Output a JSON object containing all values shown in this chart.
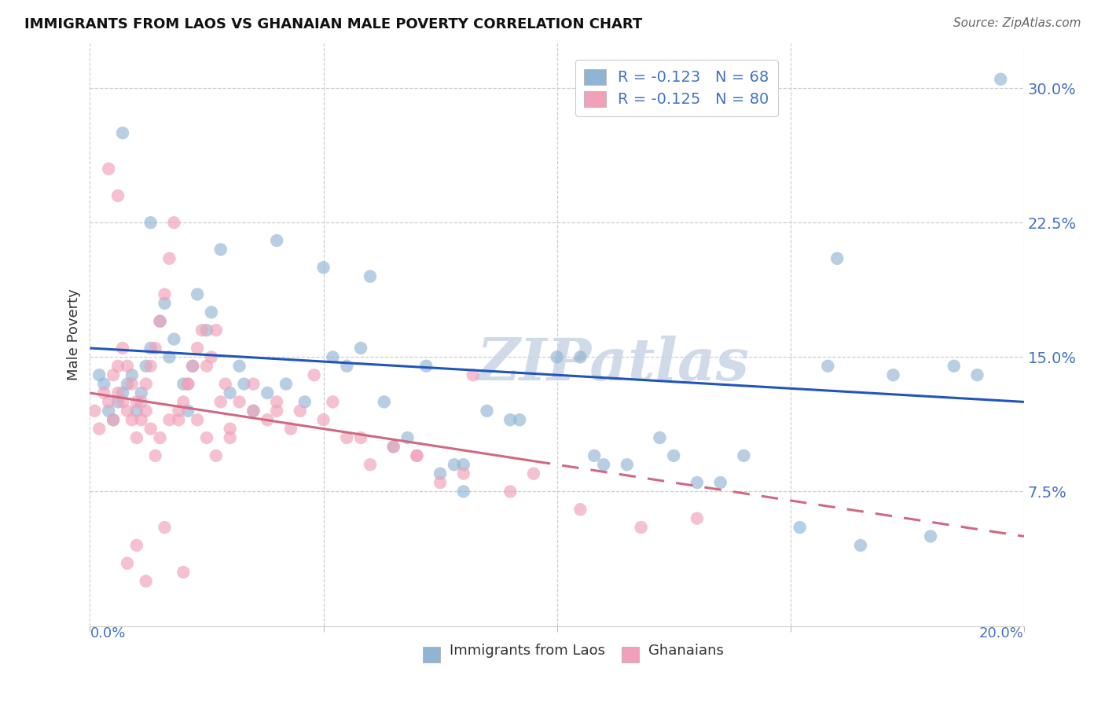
{
  "title": "IMMIGRANTS FROM LAOS VS GHANAIAN MALE POVERTY CORRELATION CHART",
  "source": "Source: ZipAtlas.com",
  "ylabel": "Male Poverty",
  "xlim": [
    0.0,
    20.0
  ],
  "ylim": [
    0.0,
    32.5
  ],
  "yticks": [
    7.5,
    15.0,
    22.5,
    30.0
  ],
  "ytick_labels": [
    "7.5%",
    "15.0%",
    "22.5%",
    "30.0%"
  ],
  "xticks": [
    0.0,
    5.0,
    10.0,
    15.0,
    20.0
  ],
  "blue_color": "#92b4d4",
  "pink_color": "#f0a0b8",
  "trendline_blue_color": "#2255bb",
  "trendline_pink_color": "#d06882",
  "blue_R": -0.123,
  "blue_N": 68,
  "pink_R": -0.125,
  "pink_N": 80,
  "pink_solid_end_x": 9.5,
  "blue_trendline_y0": 15.5,
  "blue_trendline_y1": 12.5,
  "pink_trendline_y0": 13.0,
  "pink_trendline_y1": 5.0,
  "blue_scatter_x": [
    0.2,
    0.3,
    0.4,
    0.5,
    0.6,
    0.7,
    0.8,
    0.9,
    1.0,
    1.1,
    1.2,
    1.3,
    1.5,
    1.6,
    1.7,
    1.8,
    2.0,
    2.1,
    2.2,
    2.5,
    2.6,
    2.8,
    3.0,
    3.2,
    3.5,
    3.8,
    4.2,
    4.6,
    5.2,
    5.8,
    6.3,
    6.8,
    7.2,
    7.8,
    8.5,
    9.2,
    10.0,
    10.8,
    11.5,
    12.2,
    13.0,
    14.0,
    15.2,
    16.5,
    18.0,
    19.5,
    5.5,
    6.5,
    7.5,
    8.0,
    9.0,
    11.0,
    13.5,
    15.8,
    17.2,
    5.0,
    3.3,
    2.3,
    1.3,
    0.7,
    4.0,
    6.0,
    8.0,
    10.5,
    12.5,
    16.0,
    18.5,
    19.0
  ],
  "blue_scatter_y": [
    14.0,
    13.5,
    12.0,
    11.5,
    12.5,
    13.0,
    13.5,
    14.0,
    12.0,
    13.0,
    14.5,
    15.5,
    17.0,
    18.0,
    15.0,
    16.0,
    13.5,
    12.0,
    14.5,
    16.5,
    17.5,
    21.0,
    13.0,
    14.5,
    12.0,
    13.0,
    13.5,
    12.5,
    15.0,
    15.5,
    12.5,
    10.5,
    14.5,
    9.0,
    12.0,
    11.5,
    15.0,
    9.5,
    9.0,
    10.5,
    8.0,
    9.5,
    5.5,
    4.5,
    5.0,
    30.5,
    14.5,
    10.0,
    8.5,
    9.0,
    11.5,
    9.0,
    8.0,
    14.5,
    14.0,
    20.0,
    13.5,
    18.5,
    22.5,
    27.5,
    21.5,
    19.5,
    7.5,
    15.0,
    9.5,
    20.5,
    14.5,
    14.0
  ],
  "pink_scatter_x": [
    0.1,
    0.2,
    0.3,
    0.4,
    0.5,
    0.6,
    0.7,
    0.8,
    0.9,
    1.0,
    1.1,
    1.2,
    1.3,
    1.4,
    1.5,
    1.6,
    1.7,
    1.8,
    1.9,
    2.0,
    2.1,
    2.2,
    2.3,
    2.4,
    2.5,
    2.6,
    2.7,
    2.8,
    2.9,
    3.0,
    3.2,
    3.5,
    3.8,
    4.0,
    4.3,
    4.8,
    5.2,
    5.8,
    6.5,
    7.0,
    7.5,
    8.2,
    9.5,
    0.5,
    0.6,
    0.7,
    0.8,
    0.9,
    1.0,
    1.1,
    1.2,
    1.3,
    1.4,
    1.5,
    1.7,
    1.9,
    2.1,
    2.3,
    2.5,
    2.7,
    3.0,
    3.5,
    4.0,
    4.5,
    5.0,
    5.5,
    6.0,
    7.0,
    8.0,
    9.0,
    10.5,
    11.8,
    13.0,
    0.4,
    0.6,
    0.8,
    1.0,
    1.2,
    1.6,
    2.0
  ],
  "pink_scatter_y": [
    12.0,
    11.0,
    13.0,
    12.5,
    14.0,
    14.5,
    15.5,
    14.5,
    13.5,
    12.5,
    11.5,
    13.5,
    14.5,
    15.5,
    17.0,
    18.5,
    20.5,
    22.5,
    11.5,
    12.5,
    13.5,
    14.5,
    15.5,
    16.5,
    14.5,
    15.0,
    16.5,
    12.5,
    13.5,
    11.0,
    12.5,
    12.0,
    11.5,
    12.0,
    11.0,
    14.0,
    12.5,
    10.5,
    10.0,
    9.5,
    8.0,
    14.0,
    8.5,
    11.5,
    13.0,
    12.5,
    12.0,
    11.5,
    10.5,
    12.5,
    12.0,
    11.0,
    9.5,
    10.5,
    11.5,
    12.0,
    13.5,
    11.5,
    10.5,
    9.5,
    10.5,
    13.5,
    12.5,
    12.0,
    11.5,
    10.5,
    9.0,
    9.5,
    8.5,
    7.5,
    6.5,
    5.5,
    6.0,
    25.5,
    24.0,
    3.5,
    4.5,
    2.5,
    5.5,
    3.0
  ]
}
